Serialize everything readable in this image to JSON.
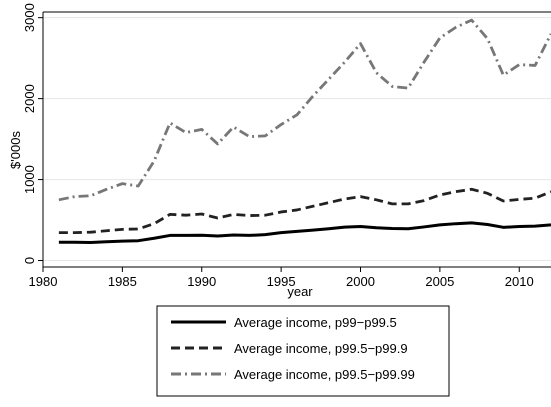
{
  "chart_data": {
    "type": "line",
    "title": "",
    "xlabel": "year",
    "ylabel": "$'000s",
    "xlim": [
      1980,
      2012
    ],
    "ylim": [
      -80,
      3070
    ],
    "x_ticks": [
      1980,
      1985,
      1990,
      1995,
      2000,
      2005,
      2010
    ],
    "y_ticks": [
      0,
      1000,
      2000,
      3000
    ],
    "grid": "horizontal",
    "legend_position": "bottom-center",
    "x": [
      1981,
      1982,
      1983,
      1984,
      1985,
      1986,
      1987,
      1988,
      1989,
      1990,
      1991,
      1992,
      1993,
      1994,
      1995,
      1996,
      1997,
      1998,
      1999,
      2000,
      2001,
      2002,
      2003,
      2004,
      2005,
      2006,
      2007,
      2008,
      2009,
      2010,
      2011,
      2012
    ],
    "series": [
      {
        "name": "Average income, p99−p99.5",
        "style": "solid",
        "color": "#000000",
        "values": [
          225,
          225,
          222,
          232,
          240,
          245,
          275,
          310,
          310,
          312,
          303,
          315,
          310,
          320,
          345,
          360,
          375,
          392,
          412,
          420,
          405,
          395,
          392,
          415,
          440,
          455,
          465,
          445,
          410,
          420,
          425,
          440
        ]
      },
      {
        "name": "Average income, p99.5−p99.9",
        "style": "dashed",
        "color": "#222222",
        "values": [
          345,
          345,
          350,
          368,
          385,
          390,
          455,
          570,
          560,
          575,
          525,
          570,
          555,
          560,
          600,
          625,
          670,
          715,
          760,
          790,
          750,
          700,
          700,
          740,
          810,
          850,
          880,
          830,
          735,
          755,
          770,
          850
        ]
      },
      {
        "name": "Average income, p99.5−p99.99",
        "style": "dash-dot",
        "color": "#777777",
        "values": [
          750,
          790,
          800,
          880,
          950,
          920,
          1230,
          1700,
          1580,
          1620,
          1440,
          1650,
          1530,
          1540,
          1680,
          1800,
          2030,
          2240,
          2450,
          2680,
          2320,
          2150,
          2130,
          2450,
          2750,
          2880,
          2970,
          2740,
          2290,
          2420,
          2410,
          2800
        ]
      }
    ]
  }
}
